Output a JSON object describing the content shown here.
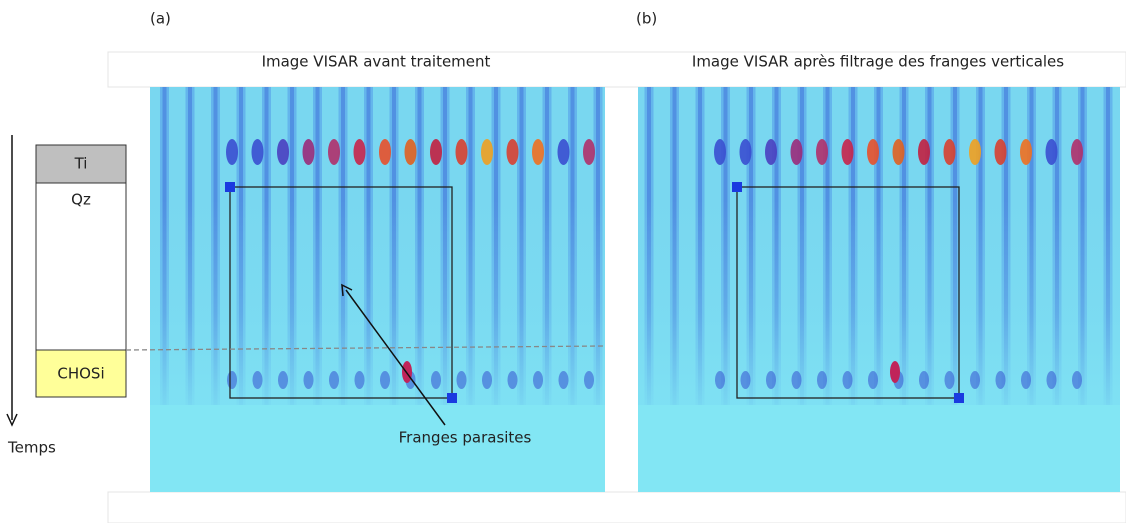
{
  "panels": [
    {
      "label": "(a)",
      "title": "Image VISAR avant traitement"
    },
    {
      "label": "(b)",
      "title": "Image VISAR après filtrage des franges verticales"
    }
  ],
  "layers": [
    {
      "label": "Ti"
    },
    {
      "label": "Qz"
    },
    {
      "label": "CHOSi"
    }
  ],
  "time_axis": {
    "label": "Temps"
  },
  "annotation": {
    "label": "Franges parasites"
  }
}
